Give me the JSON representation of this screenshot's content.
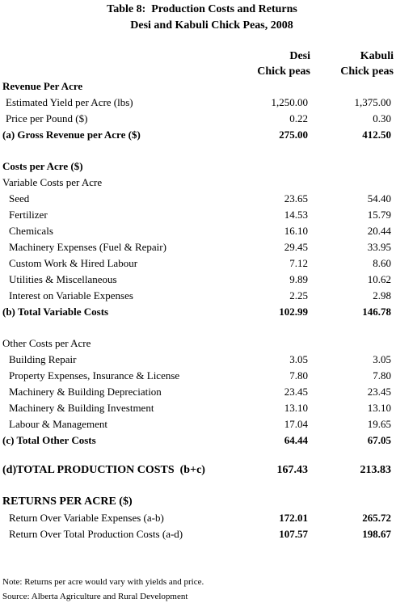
{
  "title": {
    "line1": "Table 8:  Production Costs and Returns",
    "line2": "Desi and Kabuli Chick Peas, 2008"
  },
  "table": {
    "columns": [
      {
        "line1": "Desi",
        "line2": "Chick peas"
      },
      {
        "line1": "Kabuli",
        "line2": "Chick peas"
      }
    ],
    "rows": [
      [
        "Revenue Per Acre"
      ],
      [
        "Estimated Yield per Acre (lbs)",
        "1,250.00",
        "1,375.00"
      ],
      [
        "Price per Pound ($)",
        "0.22",
        "0.30"
      ],
      [
        "(a) Gross Revenue per Acre ($)",
        "275.00",
        "412.50"
      ],
      [
        "Costs per Acre ($)"
      ],
      [
        "Variable Costs per Acre"
      ],
      [
        "Seed",
        "23.65",
        "54.40"
      ],
      [
        "Fertilizer",
        "14.53",
        "15.79"
      ],
      [
        "Chemicals",
        "16.10",
        "20.44"
      ],
      [
        "Machinery Expenses (Fuel & Repair)",
        "29.45",
        "33.95"
      ],
      [
        "Custom Work & Hired Labour",
        "7.12",
        "8.60"
      ],
      [
        "Utilities & Miscellaneous",
        "9.89",
        "10.62"
      ],
      [
        "Interest on Variable Expenses",
        "2.25",
        "2.98"
      ],
      [
        "(b) Total Variable Costs",
        "102.99",
        "146.78"
      ],
      [
        "Other Costs per Acre"
      ],
      [
        "Building Repair",
        "3.05",
        "3.05"
      ],
      [
        "Property Expenses, Insurance & License",
        "7.80",
        "7.80"
      ],
      [
        "Machinery & Building Depreciation",
        "23.45",
        "23.45"
      ],
      [
        "Machinery & Building Investment",
        "13.10",
        "13.10"
      ],
      [
        "Labour & Management",
        "17.04",
        "19.65"
      ],
      [
        "(c) Total Other Costs",
        "64.44",
        "67.05"
      ],
      [
        "(d)TOTAL PRODUCTION COSTS  (b+c)",
        "167.43",
        "213.83"
      ],
      [
        "RETURNS PER ACRE ($)"
      ],
      [
        "Return Over Variable Expenses (a-b)",
        "172.01",
        "265.72"
      ],
      [
        "Return Over Total Production Costs (a-d)",
        "107.57",
        "198.67"
      ]
    ]
  },
  "notes": [
    "Note: Returns per acre would vary with yields and price.",
    "Source: Alberta Agriculture and Rural Development"
  ]
}
